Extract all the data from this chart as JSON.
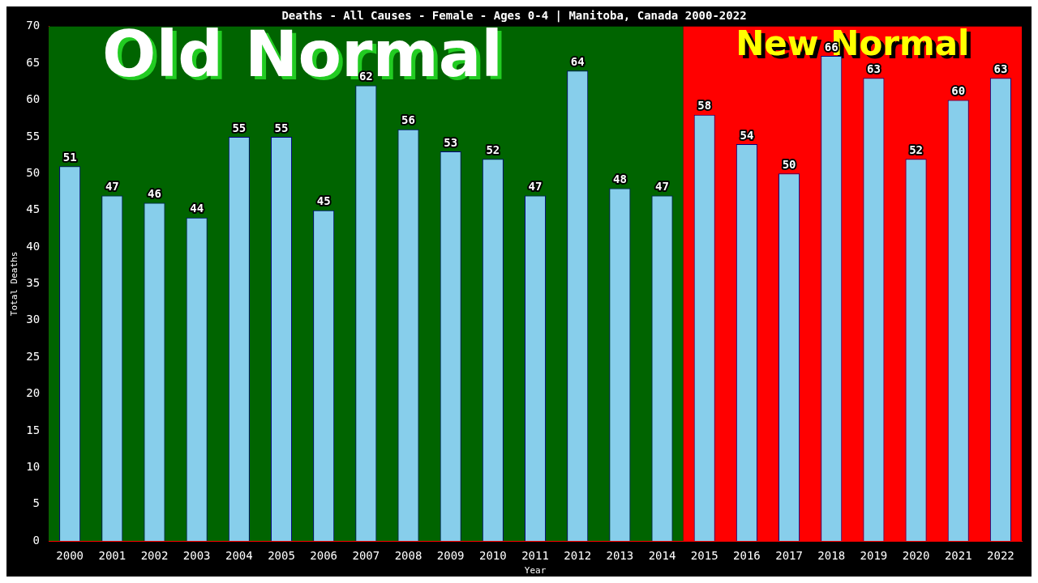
{
  "chart_data": {
    "type": "bar",
    "title": "Deaths - All Causes - Female - Ages 0-4 | Manitoba, Canada 2000-2022",
    "xlabel": "Year",
    "ylabel": "Total Deaths",
    "categories": [
      "2000",
      "2001",
      "2002",
      "2003",
      "2004",
      "2005",
      "2006",
      "2007",
      "2008",
      "2009",
      "2010",
      "2011",
      "2012",
      "2013",
      "2014",
      "2015",
      "2016",
      "2017",
      "2018",
      "2019",
      "2020",
      "2021",
      "2022"
    ],
    "values": [
      51,
      47,
      46,
      44,
      55,
      55,
      45,
      62,
      56,
      53,
      52,
      47,
      64,
      48,
      47,
      58,
      54,
      50,
      66,
      63,
      52,
      60,
      63
    ],
    "color": "#87ceeb",
    "data_labels": true,
    "grid": false,
    "legend": false,
    "ylim": [
      0,
      70
    ],
    "yticks": [
      0,
      5,
      10,
      15,
      20,
      25,
      30,
      35,
      40,
      45,
      50,
      55,
      60,
      65,
      70
    ],
    "bands": [
      {
        "axis": "x",
        "from": "2000",
        "to": "2014",
        "label": "Old Normal",
        "color": "#006400"
      },
      {
        "axis": "x",
        "from": "2015",
        "to": "2022",
        "label": "New Normal",
        "color": "#ff0000"
      }
    ]
  }
}
